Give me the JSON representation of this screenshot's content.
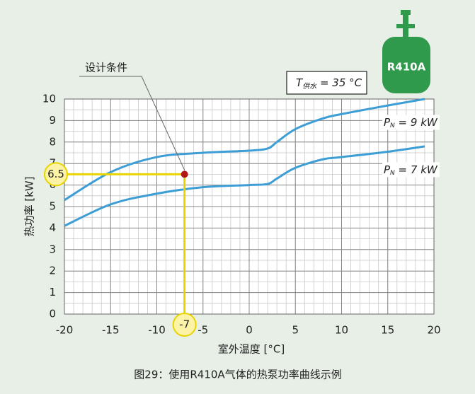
{
  "chart_data": {
    "type": "line",
    "caption": "图29：使用R410A气体的热泵功率曲线示例",
    "x_label": "室外温度 [°C]",
    "y_label": "热功率 [kW]",
    "xlim": [
      -20,
      20
    ],
    "xticks": [
      -20,
      -15,
      -10,
      -5,
      0,
      5,
      10,
      15,
      20
    ],
    "ylim": [
      0,
      10
    ],
    "yticks": [
      0,
      1,
      2,
      3,
      4,
      5,
      6,
      7,
      8,
      9,
      10
    ],
    "grid": true,
    "minor_x_step": 1,
    "minor_y_step": 0.5,
    "x": [
      -20,
      -15,
      -10,
      -5,
      0,
      2,
      3,
      5,
      8,
      10,
      15,
      19
    ],
    "series": [
      {
        "label": {
          "main": "P",
          "sub": "N",
          "rest": " = 9 kW"
        },
        "color": "#3d9ed6",
        "values": [
          5.3,
          6.6,
          7.3,
          7.5,
          7.6,
          7.7,
          8.0,
          8.6,
          9.1,
          9.3,
          9.7,
          10.0
        ]
      },
      {
        "label": {
          "main": "P",
          "sub": "N",
          "rest": " = 7 kW"
        },
        "color": "#3d9ed6",
        "values": [
          4.1,
          5.1,
          5.6,
          5.9,
          6.0,
          6.05,
          6.3,
          6.8,
          7.2,
          7.3,
          7.55,
          7.8
        ]
      }
    ],
    "condition": {
      "main": "T",
      "sub": "供水",
      "rest": " = 35 °C"
    },
    "design_point": {
      "label": "设计条件",
      "x": -7,
      "y": 6.5,
      "color": "#e8d400",
      "point_color": "#b01818"
    },
    "cylinder": {
      "label": "R410A",
      "color": "#2f9a4c"
    }
  }
}
